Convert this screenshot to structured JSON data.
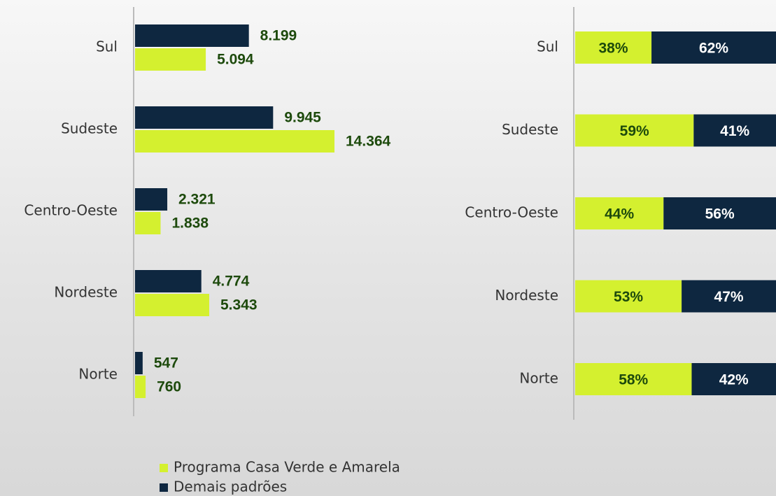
{
  "chart_data": [
    {
      "type": "grouped-hbar",
      "categories": [
        "Sul",
        "Sudeste",
        "Centro-Oeste",
        "Nordeste",
        "Norte"
      ],
      "series": [
        {
          "name": "Demais padrões",
          "color": "#0e2740",
          "values": [
            8199,
            9945,
            2321,
            4774,
            547
          ],
          "value_labels": [
            "8.199",
            "9.945",
            "2.321",
            "4.774",
            "547"
          ]
        },
        {
          "name": "Programa Casa Verde e Amarela",
          "color": "#d4f02f",
          "values": [
            5094,
            14364,
            1838,
            5343,
            760
          ],
          "value_labels": [
            "5.094",
            "14.364",
            "1.838",
            "5.343",
            "760"
          ]
        }
      ]
    },
    {
      "type": "stacked-hbar-100",
      "categories": [
        "Sul",
        "Sudeste",
        "Centro-Oeste",
        "Nordeste",
        "Norte"
      ],
      "series": [
        {
          "color": "#d4f02f",
          "values": [
            38,
            59,
            44,
            53,
            58
          ],
          "value_labels": [
            "38%",
            "59%",
            "44%",
            "53%",
            "58%"
          ]
        },
        {
          "color": "#0e2740",
          "values": [
            62,
            41,
            56,
            47,
            42
          ],
          "value_labels": [
            "62%",
            "41%",
            "56%",
            "47%",
            "42%"
          ]
        }
      ]
    }
  ]
}
